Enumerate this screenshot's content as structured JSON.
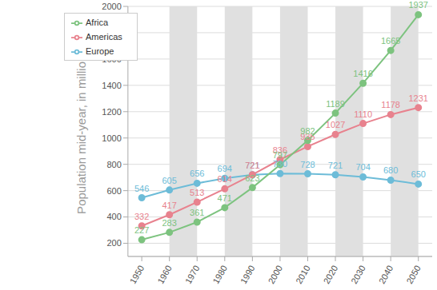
{
  "chart_data": {
    "type": "line",
    "y_label": "Population mid-year, in millions",
    "x": [
      1950,
      1960,
      1970,
      1980,
      1990,
      2000,
      2010,
      2020,
      2030,
      2040,
      2050
    ],
    "series": [
      {
        "name": "Europe",
        "color": "#6dbcd8",
        "values": [
          546,
          605,
          656,
          694,
          721,
          730,
          728,
          721,
          704,
          680,
          650
        ]
      },
      {
        "name": "Americas",
        "color": "#e8828e",
        "values": [
          332,
          417,
          513,
          614,
          721,
          836,
          935,
          1027,
          1110,
          1178,
          1231
        ]
      },
      {
        "name": "Africa",
        "color": "#7dc37f",
        "values": [
          227,
          283,
          361,
          471,
          623,
          797,
          982,
          1189,
          1416,
          1665,
          1937
        ]
      }
    ],
    "xlim": [
      1945,
      2055
    ],
    "xticks": [
      1950,
      1960,
      1970,
      1980,
      1990,
      2000,
      2010,
      2020,
      2030,
      2040,
      2050
    ],
    "ylim": [
      100,
      2000
    ],
    "yticks": [
      200,
      400,
      600,
      800,
      1000,
      1200,
      1400,
      1600,
      1800,
      2000
    ],
    "grid": true,
    "legend": "upper left",
    "marker": "circle",
    "data_labels": true
  }
}
